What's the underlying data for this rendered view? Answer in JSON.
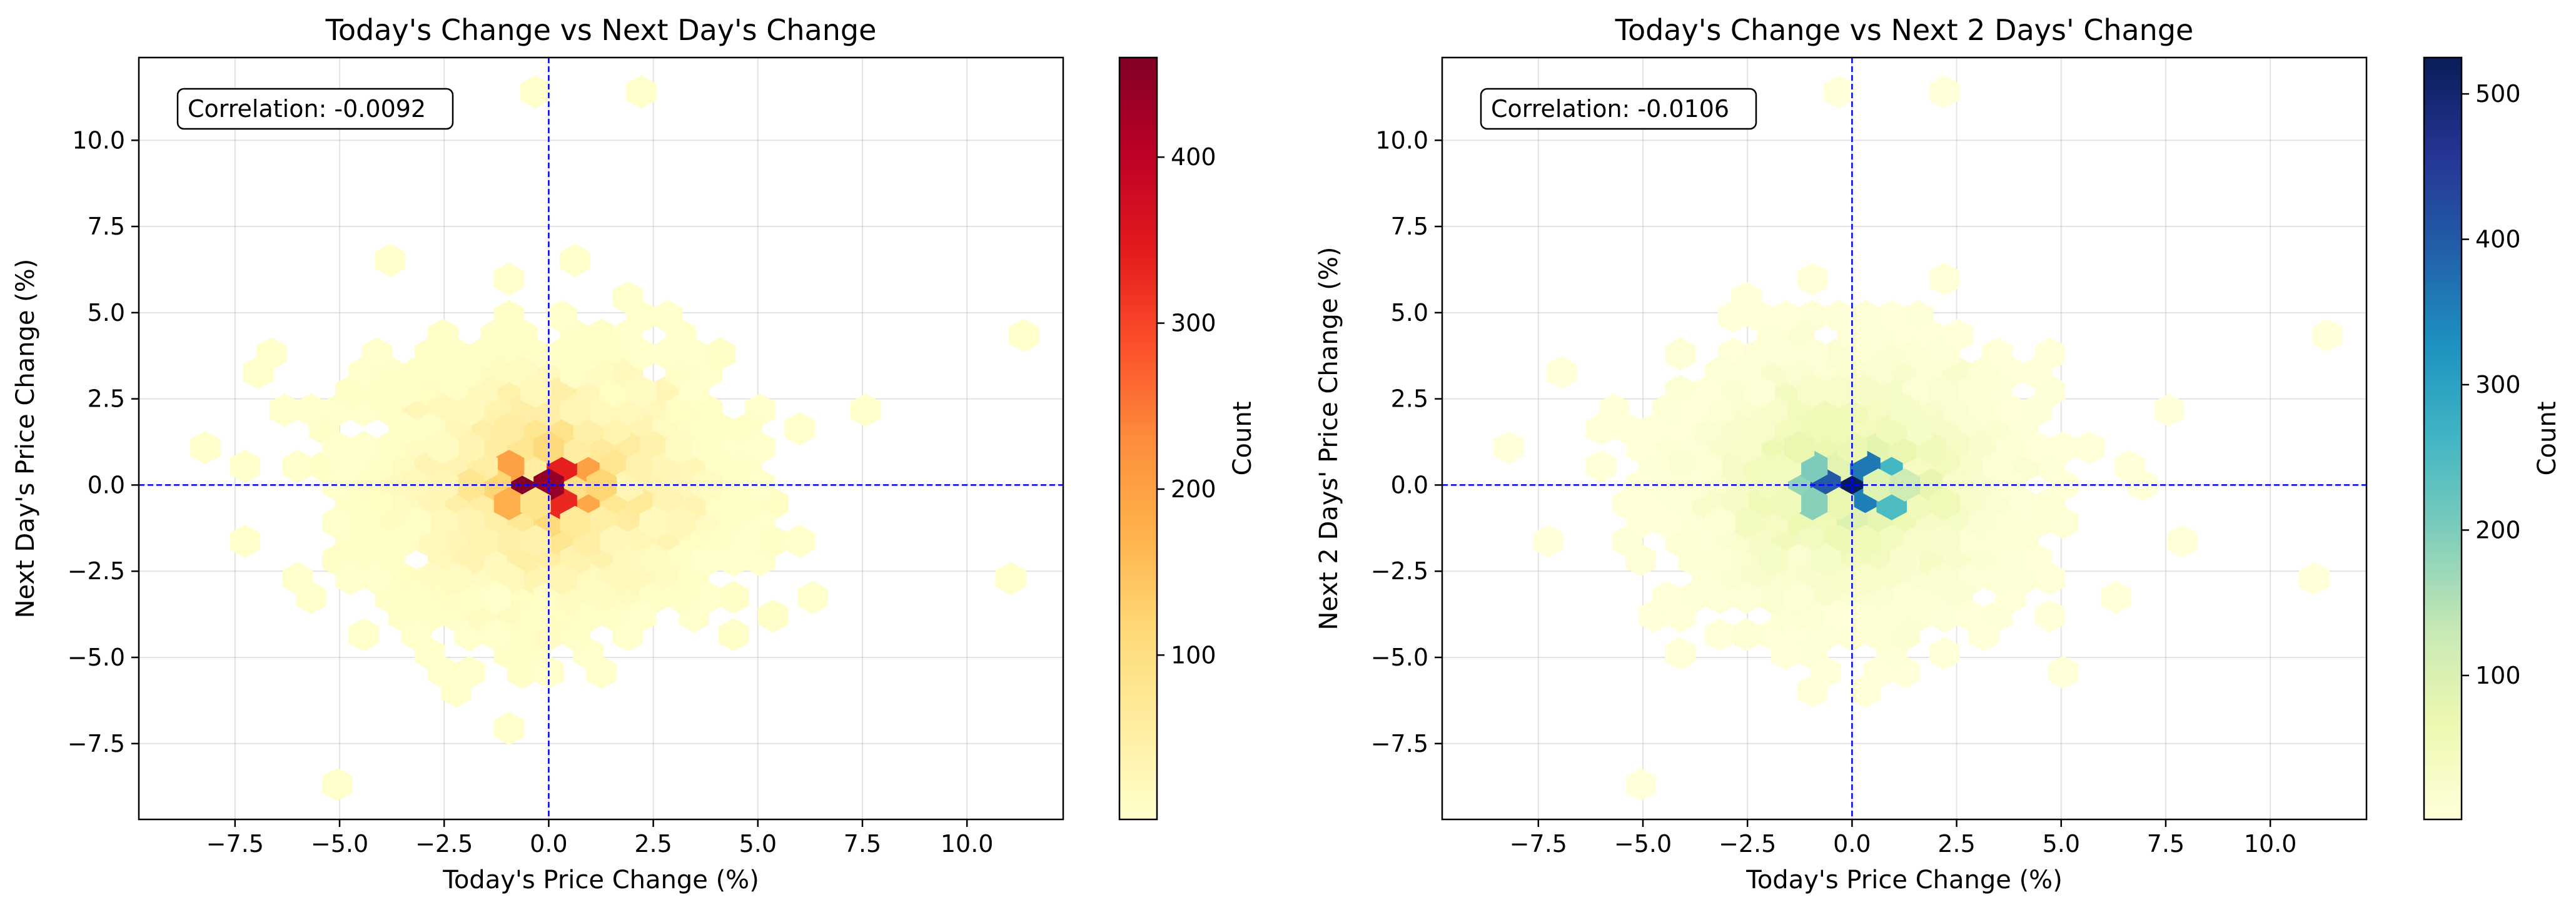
{
  "chart_data": [
    {
      "type": "hexbin",
      "title": "Today's Change vs Next Day's Change",
      "xlabel": "Today's Price Change (%)",
      "ylabel": "Next Day's Price Change (%)",
      "xlim": [
        -9.8,
        12.3
      ],
      "ylim": [
        -9.7,
        12.4
      ],
      "xticks": [
        -7.5,
        -5.0,
        -2.5,
        0.0,
        2.5,
        5.0,
        7.5,
        10.0
      ],
      "yticks": [
        -7.5,
        -5.0,
        -2.5,
        0.0,
        2.5,
        5.0,
        7.5,
        10.0
      ],
      "grid": true,
      "reference_lines": {
        "x": 0.0,
        "y": 0.0,
        "color": "#0000ff",
        "style": "dashed"
      },
      "annotation": "Correlation: -0.0092",
      "annotation_position": "top-left",
      "colormap": "YlOrRd",
      "colorbar": {
        "label": "Count",
        "range": [
          1,
          460
        ],
        "ticks": [
          100,
          200,
          300,
          400
        ]
      },
      "hex_gridsize": 35,
      "peak_cells": [
        {
          "x": -0.5,
          "y": 0.0,
          "count": 460
        },
        {
          "x": 0.3,
          "y": 0.0,
          "count": 440
        },
        {
          "x": 0.0,
          "y": 0.5,
          "count": 340
        },
        {
          "x": 0.0,
          "y": -0.5,
          "count": 330
        },
        {
          "x": -0.8,
          "y": 0.5,
          "count": 200
        },
        {
          "x": 0.8,
          "y": 0.5,
          "count": 200
        },
        {
          "x": -0.8,
          "y": -0.5,
          "count": 180
        },
        {
          "x": 0.8,
          "y": -0.5,
          "count": 190
        },
        {
          "x": -1.1,
          "y": 0.0,
          "count": 120
        },
        {
          "x": 1.1,
          "y": 0.0,
          "count": 120
        },
        {
          "x": 0.0,
          "y": 1.0,
          "count": 110
        },
        {
          "x": 0.0,
          "y": -1.0,
          "count": 110
        }
      ]
    },
    {
      "type": "hexbin",
      "title": "Today's Change vs Next 2 Days' Change",
      "xlabel": "Today's Price Change (%)",
      "ylabel": "Next 2 Days' Price Change (%)",
      "xlim": [
        -9.8,
        12.3
      ],
      "ylim": [
        -9.7,
        12.4
      ],
      "xticks": [
        -7.5,
        -5.0,
        -2.5,
        0.0,
        2.5,
        5.0,
        7.5,
        10.0
      ],
      "yticks": [
        -7.5,
        -5.0,
        -2.5,
        0.0,
        2.5,
        5.0,
        7.5,
        10.0
      ],
      "grid": true,
      "reference_lines": {
        "x": 0.0,
        "y": 0.0,
        "color": "#0000ff",
        "style": "dashed"
      },
      "annotation": "Correlation: -0.0106",
      "annotation_position": "top-left",
      "colormap": "YlGnBu",
      "colorbar": {
        "label": "Count",
        "range": [
          1,
          525
        ],
        "ticks": [
          100,
          200,
          300,
          400,
          500
        ]
      },
      "hex_gridsize": 35,
      "peak_cells": [
        {
          "x": 0.3,
          "y": 0.0,
          "count": 525
        },
        {
          "x": -0.5,
          "y": 0.0,
          "count": 400
        },
        {
          "x": 0.0,
          "y": 0.5,
          "count": 360
        },
        {
          "x": 0.0,
          "y": -0.5,
          "count": 350
        },
        {
          "x": 0.8,
          "y": 0.5,
          "count": 260
        },
        {
          "x": 0.8,
          "y": -0.5,
          "count": 250
        },
        {
          "x": -0.8,
          "y": 0.5,
          "count": 200
        },
        {
          "x": -0.8,
          "y": -0.5,
          "count": 190
        },
        {
          "x": -1.1,
          "y": 0.0,
          "count": 180
        },
        {
          "x": 1.1,
          "y": 0.0,
          "count": 120
        }
      ]
    }
  ]
}
